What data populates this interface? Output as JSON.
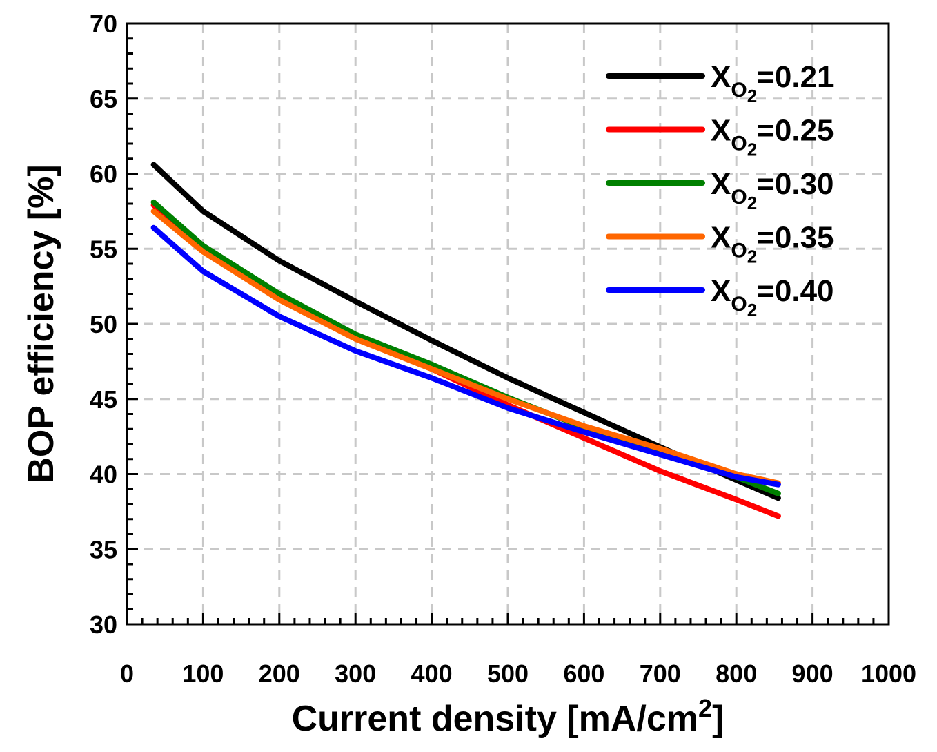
{
  "chart_data": {
    "type": "line",
    "title": "",
    "xlabel": {
      "main": "Current density [mA/cm",
      "sup": "2",
      "end": "]"
    },
    "ylabel": "BOP efficiency [%]",
    "xlim": [
      0,
      1000
    ],
    "ylim": [
      30,
      70
    ],
    "xticks": [
      0,
      100,
      200,
      300,
      400,
      500,
      600,
      700,
      800,
      900,
      1000
    ],
    "yticks": [
      30,
      35,
      40,
      45,
      50,
      55,
      60,
      65,
      70
    ],
    "grid": true,
    "legend_position": "top-right",
    "x": [
      35,
      100,
      200,
      300,
      400,
      500,
      600,
      700,
      800,
      855
    ],
    "series": [
      {
        "name": {
          "prefix": "X",
          "sub": "O",
          "subsub": "2",
          "value": "=0.21"
        },
        "color": "#000000",
        "values": [
          60.6,
          57.5,
          54.2,
          51.5,
          48.9,
          46.4,
          44.1,
          41.8,
          39.6,
          38.4
        ]
      },
      {
        "name": {
          "prefix": "X",
          "sub": "O",
          "subsub": "2",
          "value": "=0.25"
        },
        "color": "#ff0000",
        "values": [
          57.9,
          55.0,
          51.7,
          49.0,
          47.0,
          44.6,
          42.4,
          40.2,
          38.3,
          37.2
        ]
      },
      {
        "name": {
          "prefix": "X",
          "sub": "O",
          "subsub": "2",
          "value": "=0.30"
        },
        "color": "#008000",
        "values": [
          58.1,
          55.2,
          52.0,
          49.3,
          47.3,
          45.1,
          43.1,
          41.6,
          39.8,
          38.7
        ]
      },
      {
        "name": {
          "prefix": "X",
          "sub": "O",
          "subsub": "2",
          "value": "=0.35"
        },
        "color": "#ff6600",
        "values": [
          57.5,
          54.8,
          51.6,
          49.0,
          47.0,
          45.0,
          43.2,
          41.7,
          40.0,
          39.4
        ]
      },
      {
        "name": {
          "prefix": "X",
          "sub": "O",
          "subsub": "2",
          "value": "=0.40"
        },
        "color": "#0000ff",
        "values": [
          56.4,
          53.5,
          50.5,
          48.2,
          46.4,
          44.4,
          42.8,
          41.3,
          39.8,
          39.3
        ]
      }
    ]
  }
}
